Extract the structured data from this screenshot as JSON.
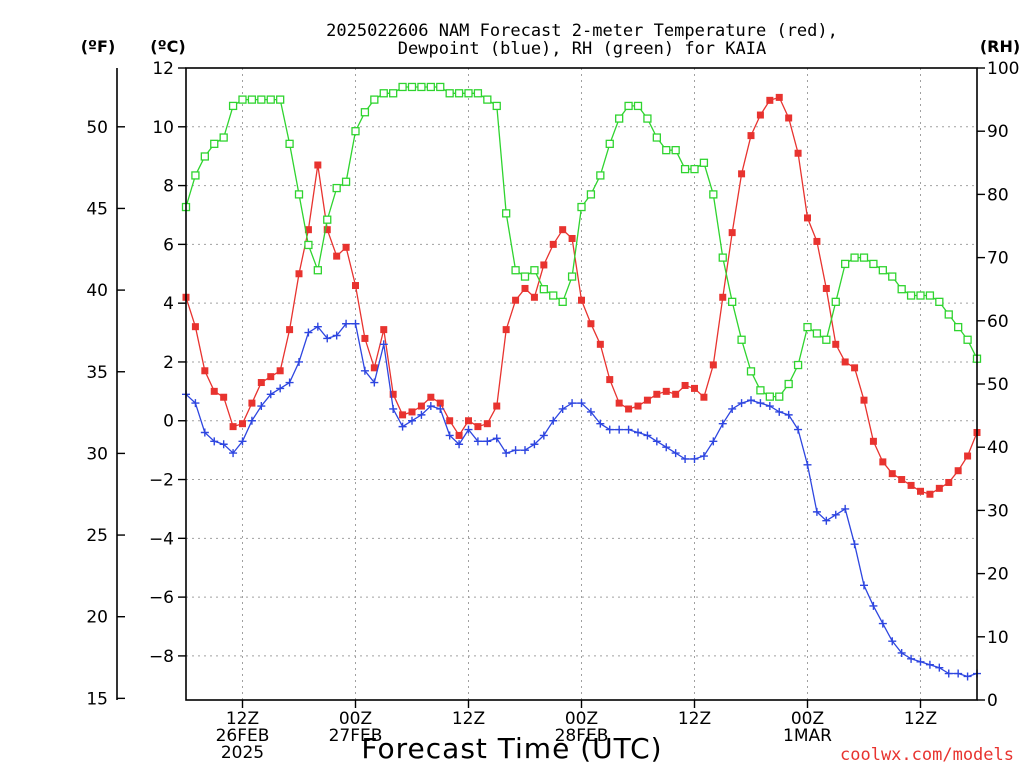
{
  "chart_data": {
    "type": "line",
    "title": [
      "2025022606 NAM Forecast 2-meter Temperature (red),",
      "Dewpoint (blue), RH (green) for KAIA"
    ],
    "xlabel": "Forecast Time (UTC)",
    "source": "coolwx.com/models",
    "axes": {
      "left_outer_unit": "(ºF)",
      "left_inner_unit": "(ºC)",
      "right_unit": "(RH)",
      "celsius_range": [
        -9.5,
        12
      ],
      "fahrenheit_range": [
        14.9,
        53.6
      ],
      "rh_range": [
        0,
        100
      ],
      "hour_range": [
        6,
        90
      ],
      "grid": true
    },
    "c_ticks": [
      12,
      10,
      8,
      6,
      4,
      2,
      0,
      -2,
      -4,
      -6,
      -8
    ],
    "c_tick_labels": [
      "12",
      "10",
      "8",
      "6",
      "4",
      "2",
      "0",
      "−2",
      "−4",
      "−6",
      "−8"
    ],
    "f_ticks": [
      50,
      45,
      40,
      35,
      30,
      25,
      20,
      15
    ],
    "f_tick_labels": [
      "50",
      "45",
      "40",
      "35",
      "30",
      "25",
      "20",
      "15"
    ],
    "rh_ticks": [
      100,
      90,
      80,
      70,
      60,
      50,
      40,
      30,
      20,
      10,
      0
    ],
    "rh_tick_labels": [
      "100",
      "90",
      "80",
      "70",
      "60",
      "50",
      "40",
      "30",
      "20",
      "10",
      "0"
    ],
    "x_labels": [
      {
        "hour": 12,
        "lines": [
          "12Z",
          "26FEB",
          "2025"
        ]
      },
      {
        "hour": 24,
        "lines": [
          "00Z",
          "27FEB"
        ]
      },
      {
        "hour": 36,
        "lines": [
          "12Z"
        ]
      },
      {
        "hour": 48,
        "lines": [
          "00Z",
          "28FEB"
        ]
      },
      {
        "hour": 60,
        "lines": [
          "12Z"
        ]
      },
      {
        "hour": 72,
        "lines": [
          "00Z",
          "1MAR"
        ]
      },
      {
        "hour": 84,
        "lines": [
          "12Z"
        ]
      }
    ],
    "series": [
      {
        "name": "Temperature",
        "color": "#e8332f",
        "marker": "filled-square",
        "axis": "celsius",
        "hours": [
          6,
          7,
          8,
          9,
          10,
          11,
          12,
          13,
          14,
          15,
          16,
          17,
          18,
          19,
          20,
          21,
          22,
          23,
          24,
          25,
          26,
          27,
          28,
          29,
          30,
          31,
          32,
          33,
          34,
          35,
          36,
          37,
          38,
          39,
          40,
          41,
          42,
          43,
          44,
          45,
          46,
          47,
          48,
          49,
          50,
          51,
          52,
          53,
          54,
          55,
          56,
          57,
          58,
          59,
          60,
          61,
          62,
          63,
          64,
          65,
          66,
          67,
          68,
          69,
          70,
          71,
          72,
          73,
          74,
          75,
          76,
          77,
          78,
          79,
          80,
          81,
          82,
          83,
          84,
          85,
          86,
          87,
          88,
          89,
          90
        ],
        "values": [
          4.2,
          3.2,
          1.7,
          1.0,
          0.8,
          -0.2,
          -0.1,
          0.6,
          1.3,
          1.5,
          1.7,
          3.1,
          5.0,
          6.5,
          8.7,
          6.5,
          5.6,
          5.9,
          4.6,
          2.8,
          1.8,
          3.1,
          0.9,
          0.2,
          0.3,
          0.5,
          0.8,
          0.6,
          0.0,
          -0.5,
          0.0,
          -0.2,
          -0.1,
          0.5,
          3.1,
          4.1,
          4.5,
          4.2,
          5.3,
          6.0,
          6.5,
          6.2,
          4.1,
          3.3,
          2.6,
          1.4,
          0.6,
          0.4,
          0.5,
          0.7,
          0.9,
          1.0,
          0.9,
          1.2,
          1.1,
          0.8,
          1.9,
          4.2,
          6.4,
          8.4,
          9.7,
          10.4,
          10.9,
          11.0,
          10.3,
          9.1,
          6.9,
          6.1,
          4.5,
          2.6,
          2.0,
          1.8,
          0.7,
          -0.7,
          -1.4,
          -1.8,
          -2.0,
          -2.2,
          -2.4,
          -2.5,
          -2.3,
          -2.1,
          -1.7,
          -1.2,
          -0.4
        ]
      },
      {
        "name": "Dewpoint",
        "color": "#2e46e0",
        "marker": "plus",
        "axis": "celsius",
        "hours": [
          6,
          7,
          8,
          9,
          10,
          11,
          12,
          13,
          14,
          15,
          16,
          17,
          18,
          19,
          20,
          21,
          22,
          23,
          24,
          25,
          26,
          27,
          28,
          29,
          30,
          31,
          32,
          33,
          34,
          35,
          36,
          37,
          38,
          39,
          40,
          41,
          42,
          43,
          44,
          45,
          46,
          47,
          48,
          49,
          50,
          51,
          52,
          53,
          54,
          55,
          56,
          57,
          58,
          59,
          60,
          61,
          62,
          63,
          64,
          65,
          66,
          67,
          68,
          69,
          70,
          71,
          72,
          73,
          74,
          75,
          76,
          77,
          78,
          79,
          80,
          81,
          82,
          83,
          84,
          85,
          86,
          87,
          88,
          89,
          90
        ],
        "values": [
          0.9,
          0.6,
          -0.4,
          -0.7,
          -0.8,
          -1.1,
          -0.7,
          0.0,
          0.5,
          0.9,
          1.1,
          1.3,
          2.0,
          3.0,
          3.2,
          2.8,
          2.9,
          3.3,
          3.3,
          1.7,
          1.3,
          2.6,
          0.4,
          -0.2,
          0.0,
          0.2,
          0.5,
          0.4,
          -0.5,
          -0.8,
          -0.3,
          -0.7,
          -0.7,
          -0.6,
          -1.1,
          -1.0,
          -1.0,
          -0.8,
          -0.5,
          0.0,
          0.4,
          0.6,
          0.6,
          0.3,
          -0.1,
          -0.3,
          -0.3,
          -0.3,
          -0.4,
          -0.5,
          -0.7,
          -0.9,
          -1.1,
          -1.3,
          -1.3,
          -1.2,
          -0.7,
          -0.1,
          0.4,
          0.6,
          0.7,
          0.6,
          0.5,
          0.3,
          0.2,
          -0.3,
          -1.5,
          -3.1,
          -3.4,
          -3.2,
          -3.0,
          -4.2,
          -5.6,
          -6.3,
          -6.9,
          -7.5,
          -7.9,
          -8.1,
          -8.2,
          -8.3,
          -8.4,
          -8.6,
          -8.6,
          -8.7,
          -8.6
        ]
      },
      {
        "name": "RH",
        "color": "#2fd42f",
        "marker": "open-square",
        "axis": "rh",
        "hours": [
          6,
          7,
          8,
          9,
          10,
          11,
          12,
          13,
          14,
          15,
          16,
          17,
          18,
          19,
          20,
          21,
          22,
          23,
          24,
          25,
          26,
          27,
          28,
          29,
          30,
          31,
          32,
          33,
          34,
          35,
          36,
          37,
          38,
          39,
          40,
          41,
          42,
          43,
          44,
          45,
          46,
          47,
          48,
          49,
          50,
          51,
          52,
          53,
          54,
          55,
          56,
          57,
          58,
          59,
          60,
          61,
          62,
          63,
          64,
          65,
          66,
          67,
          68,
          69,
          70,
          71,
          72,
          73,
          74,
          75,
          76,
          77,
          78,
          79,
          80,
          81,
          82,
          83,
          84,
          85,
          86,
          87,
          88,
          89,
          90
        ],
        "values": [
          78,
          83,
          86,
          88,
          89,
          94,
          95,
          95,
          95,
          95,
          95,
          88,
          80,
          72,
          68,
          76,
          81,
          82,
          90,
          93,
          95,
          96,
          96,
          97,
          97,
          97,
          97,
          97,
          96,
          96,
          96,
          96,
          95,
          94,
          77,
          68,
          67,
          68,
          65,
          64,
          63,
          67,
          78,
          80,
          83,
          88,
          92,
          94,
          94,
          92,
          89,
          87,
          87,
          84,
          84,
          85,
          80,
          70,
          63,
          57,
          52,
          49,
          48,
          48,
          50,
          53,
          59,
          58,
          57,
          63,
          69,
          70,
          70,
          69,
          68,
          67,
          65,
          64,
          64,
          64,
          63,
          61,
          59,
          57,
          54
        ]
      }
    ]
  }
}
